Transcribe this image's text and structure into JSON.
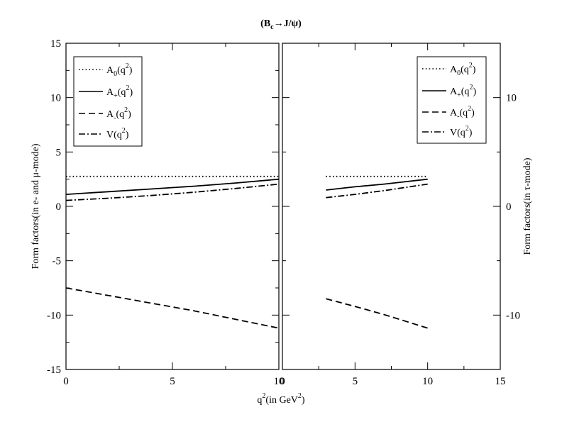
{
  "title": "(B_c→J/ψ)",
  "xlabel": "q^2(in GeV^2)",
  "ylabel_left": "Form factors(in e- and μ-mode)",
  "ylabel_right": "Form factors(in τ-mode)",
  "chart_data": [
    {
      "type": "line",
      "panel": "left",
      "xlim": [
        0,
        10
      ],
      "ylim": [
        -15,
        15
      ],
      "xticks": [
        "0",
        "5",
        "10"
      ],
      "yticks": [
        "-15",
        "-10",
        "-5",
        "0",
        "5",
        "10",
        "15"
      ],
      "legend": "top-left",
      "series": [
        {
          "name": "A0(q2)",
          "style": "dotted",
          "x": [
            0,
            10
          ],
          "y": [
            2.75,
            2.75
          ]
        },
        {
          "name": "A+(q2)",
          "style": "solid",
          "x": [
            0,
            2,
            4,
            6,
            8,
            10
          ],
          "y": [
            1.1,
            1.35,
            1.6,
            1.85,
            2.15,
            2.5
          ]
        },
        {
          "name": "A-(q2)",
          "style": "dashed",
          "x": [
            0,
            2,
            4,
            6,
            8,
            10
          ],
          "y": [
            -7.5,
            -8.2,
            -8.9,
            -9.6,
            -10.4,
            -11.2
          ]
        },
        {
          "name": "V(q2)",
          "style": "dashdot",
          "x": [
            0,
            2,
            4,
            6,
            8,
            10
          ],
          "y": [
            0.55,
            0.75,
            1.0,
            1.3,
            1.65,
            2.05
          ]
        }
      ]
    },
    {
      "type": "line",
      "panel": "right",
      "xlim": [
        0,
        15
      ],
      "ylim": [
        -15,
        15
      ],
      "xticks": [
        "0",
        "5",
        "10",
        "15"
      ],
      "yticks": [
        "-10",
        "0",
        "10"
      ],
      "legend": "top-right",
      "series": [
        {
          "name": "A0(q2)",
          "style": "dotted",
          "x": [
            3,
            10
          ],
          "y": [
            2.75,
            2.75
          ]
        },
        {
          "name": "A+(q2)",
          "style": "solid",
          "x": [
            3,
            5,
            7,
            10
          ],
          "y": [
            1.5,
            1.8,
            2.05,
            2.5
          ]
        },
        {
          "name": "A-(q2)",
          "style": "dashed",
          "x": [
            3,
            5,
            7,
            10
          ],
          "y": [
            -8.5,
            -9.2,
            -9.95,
            -11.2
          ]
        },
        {
          "name": "V(q2)",
          "style": "dashdot",
          "x": [
            3,
            5,
            7,
            10
          ],
          "y": [
            0.8,
            1.1,
            1.45,
            2.05
          ]
        }
      ]
    }
  ]
}
